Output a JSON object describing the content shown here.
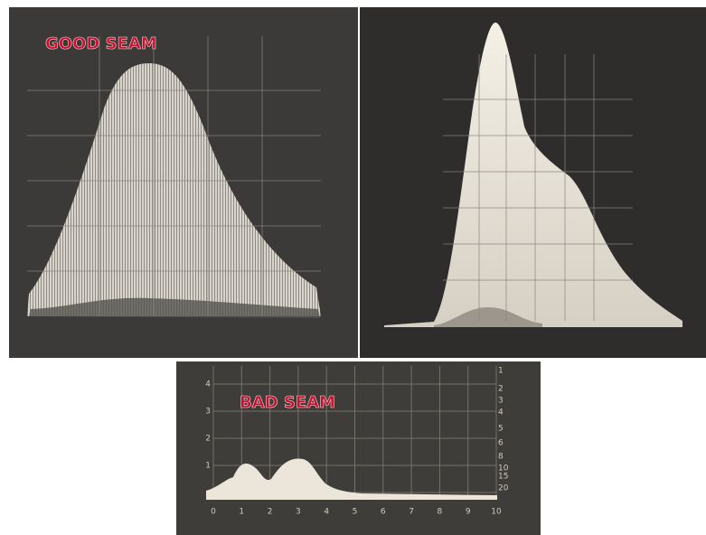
{
  "good_seam": {
    "label": "GOOD SEAM"
  },
  "bad_seam": {
    "label": "BAD SEAM",
    "x_axis_labels": [
      "0",
      "1",
      "2",
      "3",
      "4",
      "5",
      "6",
      "7",
      "8",
      "9",
      "10"
    ],
    "left_labels": [
      "4",
      "3",
      "2",
      "1"
    ],
    "right_labels": [
      "1",
      "2",
      "3",
      "4",
      "5",
      "6",
      "8",
      "10",
      "15",
      "20"
    ]
  }
}
